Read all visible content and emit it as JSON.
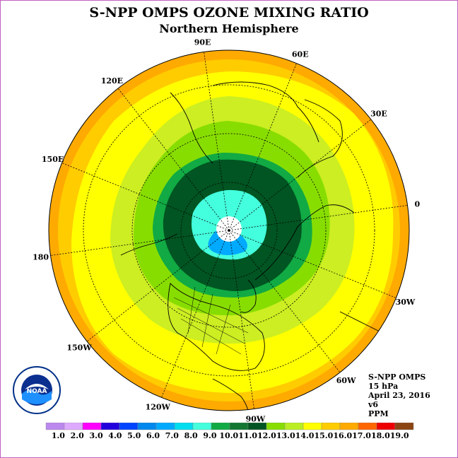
{
  "title": "S-NPP OMPS OZONE MIXING RATIO",
  "subtitle": "Northern Hemisphere",
  "longitude_labels": [
    {
      "text": "90E",
      "deg": 90
    },
    {
      "text": "60E",
      "deg": 60
    },
    {
      "text": "30E",
      "deg": 30
    },
    {
      "text": "0",
      "deg": 0
    },
    {
      "text": "30W",
      "deg": -30
    },
    {
      "text": "60W",
      "deg": -60
    },
    {
      "text": "90W",
      "deg": -90
    },
    {
      "text": "120W",
      "deg": -120
    },
    {
      "text": "150W",
      "deg": -150
    },
    {
      "text": "180",
      "deg": 180
    },
    {
      "text": "150E",
      "deg": 150
    },
    {
      "text": "120E",
      "deg": 120
    }
  ],
  "info": {
    "instrument": "S-NPP OMPS",
    "level": "15 hPa",
    "date": "April 23, 2016",
    "version": "v6",
    "units": "PPM"
  },
  "logo": {
    "text": "NOAA",
    "icon": "noaa-logo-icon"
  },
  "legend": {
    "tick_labels": [
      "1.0",
      "2.0",
      "3.0",
      "4.0",
      "5.0",
      "6.0",
      "7.0",
      "8.0",
      "9.0",
      "10.0",
      "11.0",
      "12.0",
      "13.0",
      "14.0",
      "15.0",
      "16.0",
      "17.0",
      "18.0",
      "19.0"
    ],
    "colors": [
      "#bb88ee",
      "#ddaaff",
      "#ff00ff",
      "#2200dd",
      "#0044ff",
      "#0088ee",
      "#00aaff",
      "#00ddee",
      "#44ffdd",
      "#11aa44",
      "#117733",
      "#005522",
      "#88dd00",
      "#bbee22",
      "#ffff00",
      "#ffcc00",
      "#ffaa00",
      "#ff6600",
      "#ee0000",
      "#8b4513"
    ]
  },
  "map_fill_colors": {
    "outer_ring": "#ffaa00",
    "mid_ring": "#ffcc00",
    "yellow_band": "#ffff00",
    "yellowgreen_band": "#ccee22",
    "lightgreen_band": "#88dd00",
    "green_band": "#11aa44",
    "darkgreen_core": "#005522",
    "cyan_core": "#44ffdd",
    "blue_core": "#00aaff",
    "polar_cap": "#ffffff"
  }
}
